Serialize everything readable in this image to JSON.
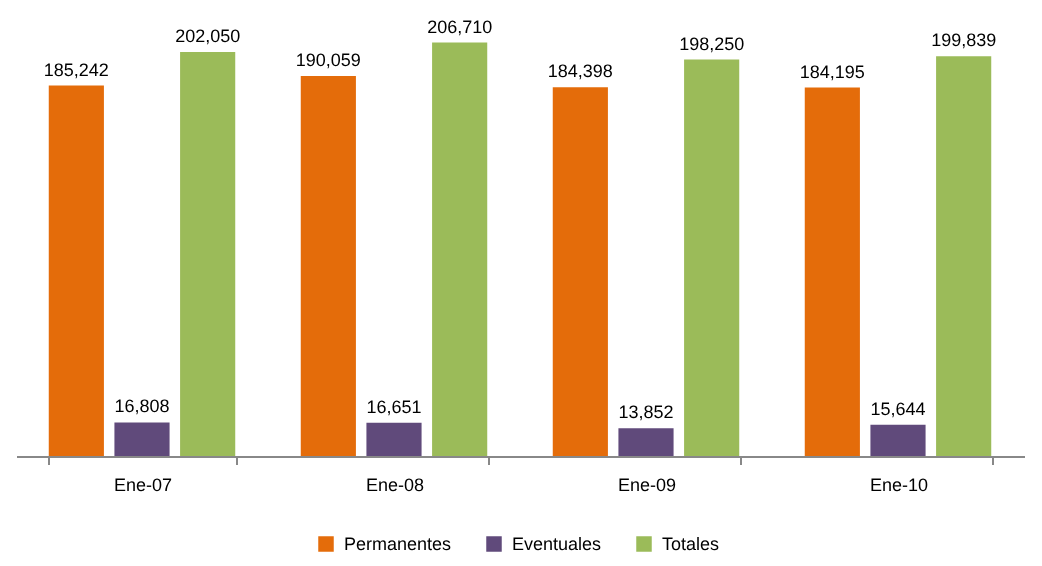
{
  "chart_data": {
    "type": "bar",
    "categories": [
      "Ene-07",
      "Ene-08",
      "Ene-09",
      "Ene-10"
    ],
    "series": [
      {
        "name": "Permanentes",
        "color": "#e46c0a",
        "values": [
          185242,
          190059,
          184398,
          184195
        ],
        "value_labels": [
          "185,242",
          "190,059",
          "184,398",
          "184,195"
        ]
      },
      {
        "name": "Eventuales",
        "color": "#604a7b",
        "values": [
          16808,
          16651,
          13852,
          15644
        ],
        "value_labels": [
          "16,808",
          "16,651",
          "13,852",
          "15,644"
        ]
      },
      {
        "name": "Totales",
        "color": "#9bbb59",
        "values": [
          202050,
          206710,
          198250,
          199839
        ],
        "value_labels": [
          "202,050",
          "206,710",
          "198,250",
          "199,839"
        ]
      }
    ],
    "legend": "bottom",
    "grid": false
  }
}
